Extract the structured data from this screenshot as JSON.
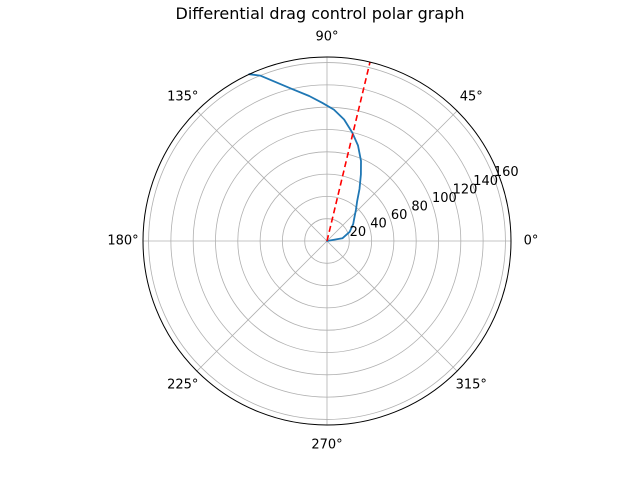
{
  "chart_data": {
    "type": "line",
    "projection": "polar",
    "title": "Differential drag control polar graph",
    "theta_ticks": [
      "0°",
      "45°",
      "90°",
      "135°",
      "180°",
      "225°",
      "270°",
      "315°"
    ],
    "theta_tick_values_deg": [
      0,
      45,
      90,
      135,
      180,
      225,
      270,
      315
    ],
    "r_ticks": [
      20,
      40,
      60,
      80,
      100,
      120,
      140,
      160
    ],
    "r_tick_labels": [
      "20",
      "40",
      "60",
      "80",
      "100",
      "120",
      "140",
      "160"
    ],
    "rlim": [
      0,
      165
    ],
    "grid": true,
    "series": [
      {
        "style": "solid",
        "color": "#1f77b4",
        "points": [
          {
            "theta_deg": 0,
            "r": 0
          },
          {
            "theta_deg": 10,
            "r": 14
          },
          {
            "theta_deg": 22,
            "r": 22
          },
          {
            "theta_deg": 33,
            "r": 28
          },
          {
            "theta_deg": 40,
            "r": 32
          },
          {
            "theta_deg": 47,
            "r": 38
          },
          {
            "theta_deg": 53,
            "r": 45
          },
          {
            "theta_deg": 58,
            "r": 55
          },
          {
            "theta_deg": 63,
            "r": 67
          },
          {
            "theta_deg": 67,
            "r": 78
          },
          {
            "theta_deg": 72,
            "r": 90
          },
          {
            "theta_deg": 77,
            "r": 100
          },
          {
            "theta_deg": 82,
            "r": 110
          },
          {
            "theta_deg": 87,
            "r": 118
          },
          {
            "theta_deg": 92,
            "r": 124
          },
          {
            "theta_deg": 97,
            "r": 131
          },
          {
            "theta_deg": 103,
            "r": 140
          },
          {
            "theta_deg": 108,
            "r": 150
          },
          {
            "theta_deg": 112,
            "r": 160
          },
          {
            "theta_deg": 115,
            "r": 165
          }
        ]
      },
      {
        "style": "dashed",
        "color": "#ff0000",
        "points": [
          {
            "theta_deg": 76.5,
            "r": 0
          },
          {
            "theta_deg": 76.5,
            "r": 165
          }
        ]
      }
    ]
  }
}
